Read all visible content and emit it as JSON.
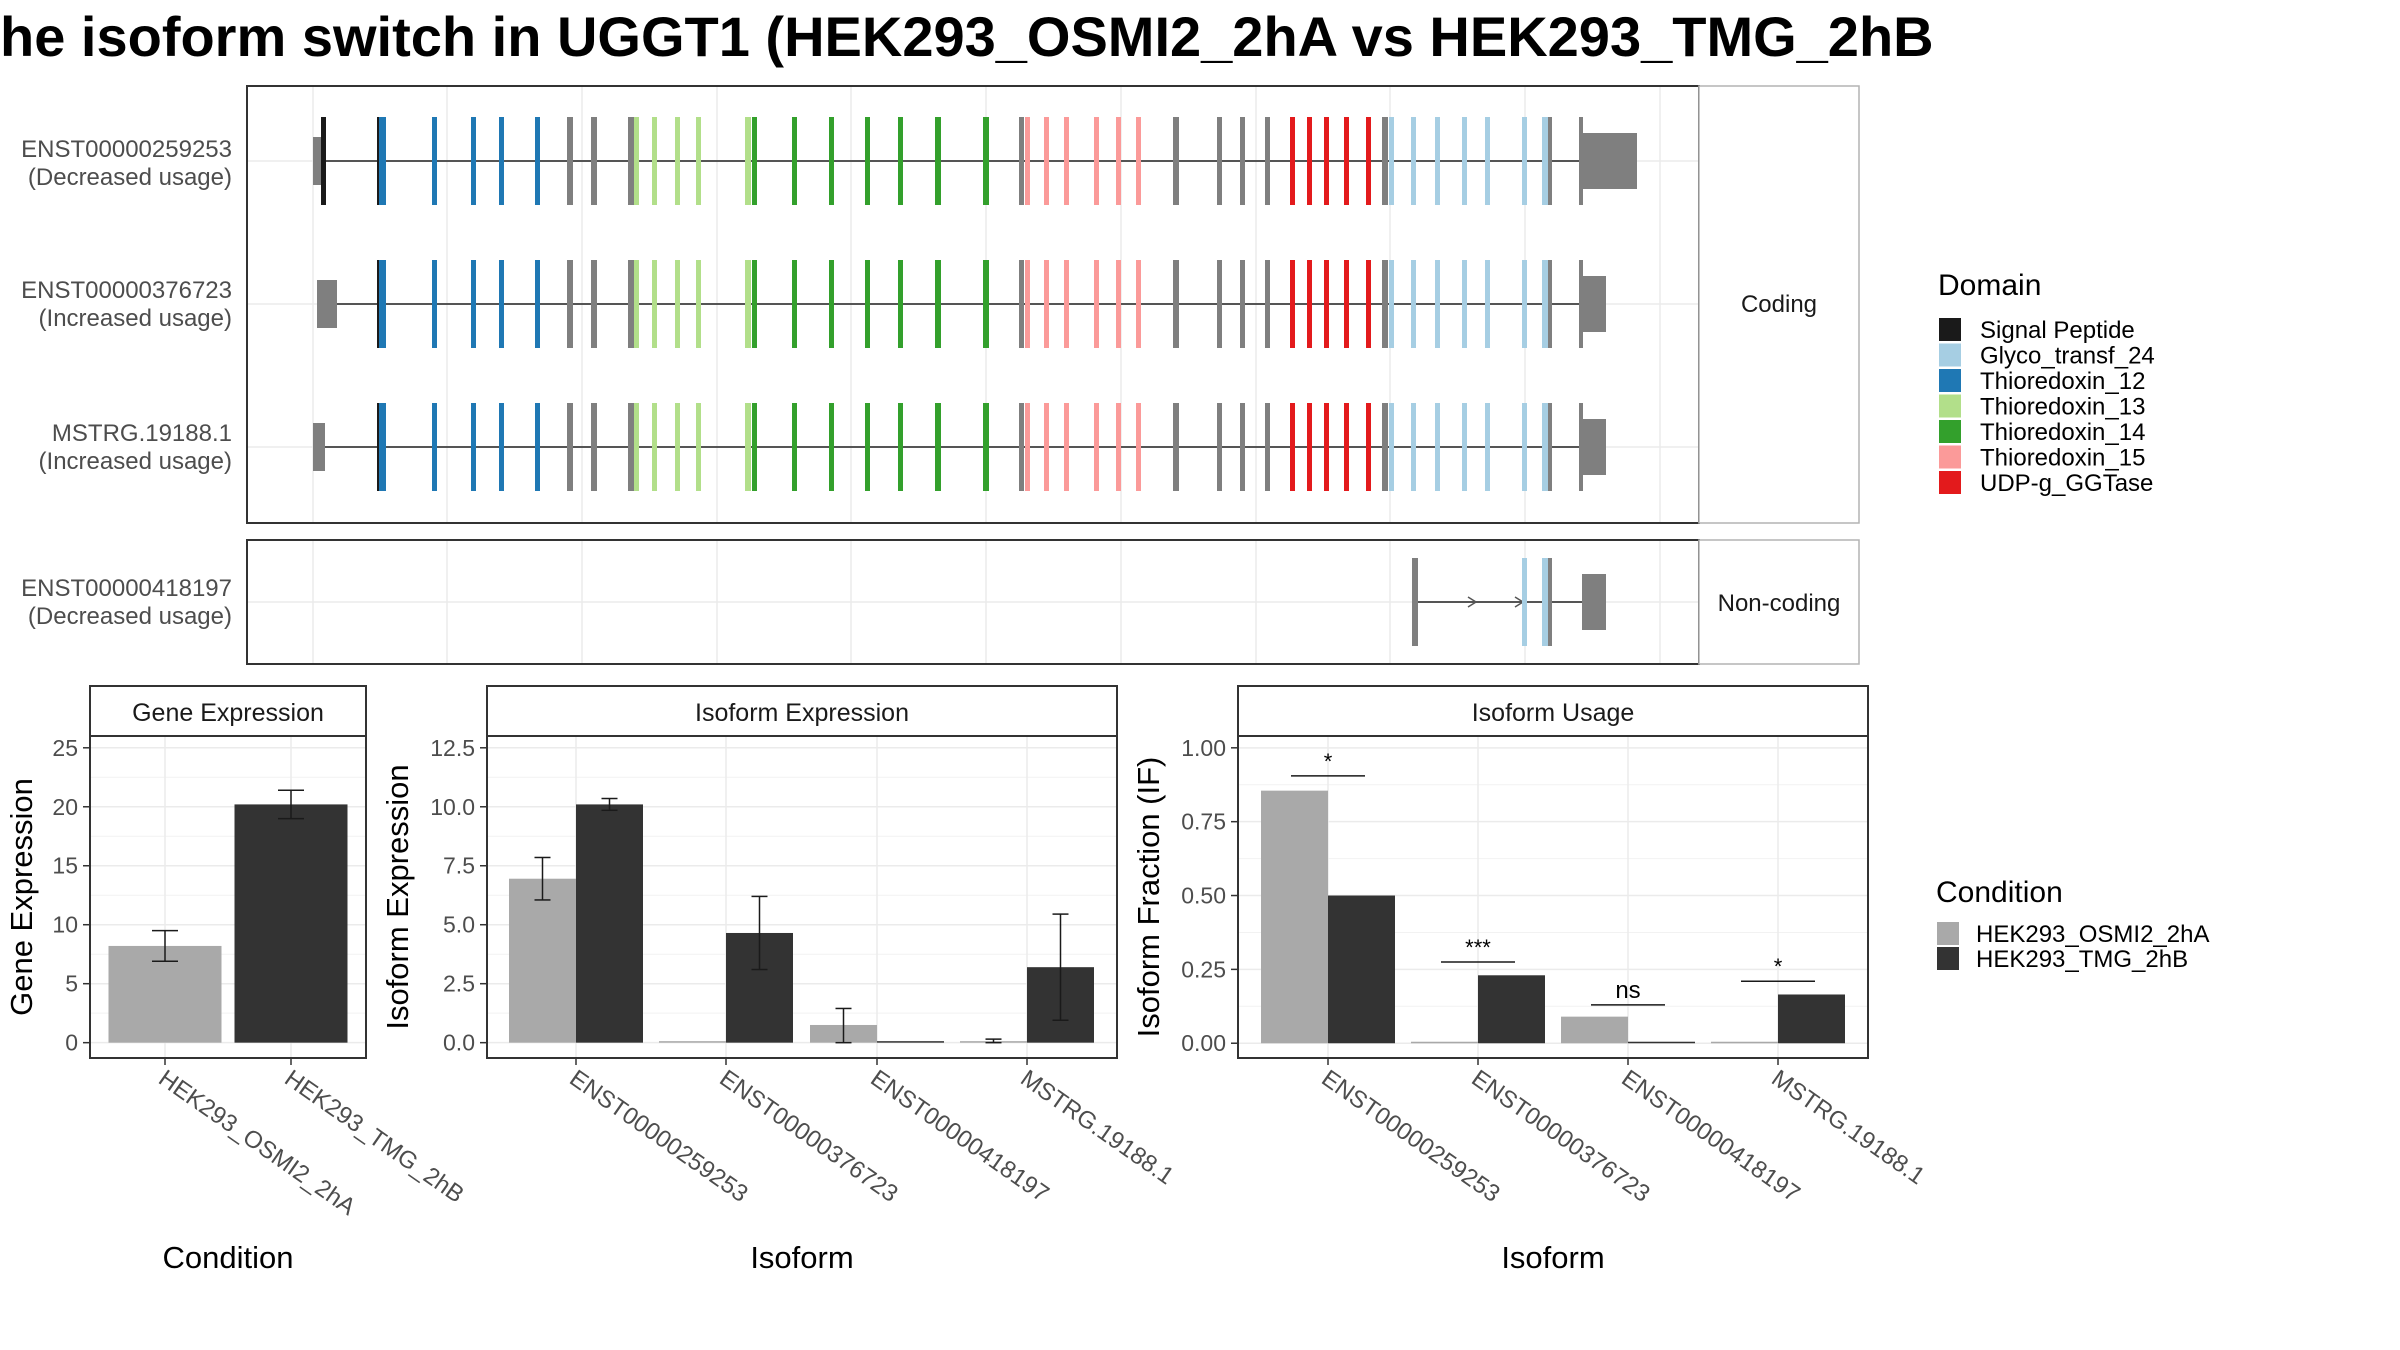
{
  "title": "he isoform switch in UGGT1 (HEK293_OSMI2_2hA vs HEK293_TMG_2hB",
  "domain_colors": {
    "signal": "#1a1a1a",
    "glyco": "#a6cee3",
    "thio12": "#1f78b4",
    "thio13": "#b2df8a",
    "thio14": "#33a02c",
    "thio15": "#fb9a99",
    "udp": "#e31a1c",
    "none": "#7f7f7f"
  },
  "condition_colors": [
    "#a9a9a9",
    "#333333"
  ],
  "chart_data": [
    {
      "type": "gene_structure",
      "facets": [
        "Coding",
        "Non-coding"
      ],
      "transcripts": [
        {
          "id": "ENST00000259253",
          "label": "(Decreased usage)",
          "facet": "Coding"
        },
        {
          "id": "ENST00000376723",
          "label": "(Increased usage)",
          "facet": "Coding"
        },
        {
          "id": "MSTRG.19188.1",
          "label": "(Increased usage)",
          "facet": "Coding"
        },
        {
          "id": "ENST00000418197",
          "label": "(Decreased usage)",
          "facet": "Non-coding"
        }
      ],
      "legend": {
        "title": "Domain",
        "entries": [
          {
            "key": "signal",
            "name": "Signal Peptide"
          },
          {
            "key": "glyco",
            "name": "Glyco_transf_24"
          },
          {
            "key": "thio12",
            "name": "Thioredoxin_12"
          },
          {
            "key": "thio13",
            "name": "Thioredoxin_13"
          },
          {
            "key": "thio14",
            "name": "Thioredoxin_14"
          },
          {
            "key": "thio15",
            "name": "Thioredoxin_15"
          },
          {
            "key": "udp",
            "name": "UDP-g_GGTase"
          }
        ]
      }
    },
    {
      "type": "bar",
      "title": "Gene Expression",
      "xlabel": "Condition",
      "ylabel": "Gene Expression",
      "categories": [
        "HEK293_OSMI2_2hA",
        "HEK293_TMG_2hB"
      ],
      "values": [
        8.2,
        20.2
      ],
      "err_low": [
        6.9,
        19.0
      ],
      "err_high": [
        9.5,
        21.4
      ],
      "ylim": [
        -1.3,
        26.0
      ],
      "yticks": [
        0,
        5,
        10,
        15,
        20,
        25
      ],
      "ytick_labels": [
        "0",
        "5",
        "10",
        "15",
        "20",
        "25"
      ]
    },
    {
      "type": "bar",
      "title": "Isoform Expression",
      "xlabel": "Isoform",
      "ylabel": "Isoform Expression",
      "categories": [
        "ENST00000259253",
        "ENST00000376723",
        "ENST00000418197",
        "MSTRG.19188.1"
      ],
      "series": [
        {
          "name": "HEK293_OSMI2_2hA",
          "values": [
            6.95,
            0.0,
            0.75,
            0.05
          ],
          "err_low": [
            6.05,
            0.0,
            0.0,
            0.0
          ],
          "err_high": [
            7.85,
            0.0,
            1.45,
            0.15
          ]
        },
        {
          "name": "HEK293_TMG_2hB",
          "values": [
            10.1,
            4.65,
            0.0,
            3.2
          ],
          "err_low": [
            9.85,
            3.1,
            0.0,
            0.95
          ],
          "err_high": [
            10.35,
            6.2,
            0.0,
            5.45
          ]
        }
      ],
      "ylim": [
        -0.65,
        13.0
      ],
      "yticks": [
        0,
        2.5,
        5,
        7.5,
        10,
        12.5
      ],
      "ytick_labels": [
        "0.0",
        "2.5",
        "5.0",
        "7.5",
        "10.0",
        "12.5"
      ]
    },
    {
      "type": "bar",
      "title": "Isoform Usage",
      "xlabel": "Isoform",
      "ylabel": "Isoform Fraction (IF)",
      "categories": [
        "ENST00000259253",
        "ENST00000376723",
        "ENST00000418197",
        "MSTRG.19188.1"
      ],
      "series": [
        {
          "name": "HEK293_OSMI2_2hA",
          "values": [
            0.855,
            0.0,
            0.09,
            0.005
          ]
        },
        {
          "name": "HEK293_TMG_2hB",
          "values": [
            0.5,
            0.23,
            0.0,
            0.165
          ]
        }
      ],
      "significance": [
        "*",
        "***",
        "ns",
        "*"
      ],
      "sig_line_y": [
        0.905,
        0.275,
        0.13,
        0.21
      ],
      "ylim": [
        -0.05,
        1.04
      ],
      "yticks": [
        0,
        0.25,
        0.5,
        0.75,
        1.0
      ],
      "ytick_labels": [
        "0.00",
        "0.25",
        "0.50",
        "0.75",
        "1.00"
      ]
    }
  ],
  "condition_legend": {
    "title": "Condition",
    "entries": [
      "HEK293_OSMI2_2hA",
      "HEK293_TMG_2hB"
    ]
  }
}
